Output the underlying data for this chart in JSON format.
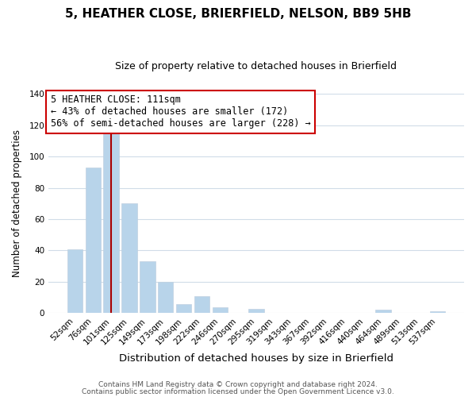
{
  "title": "5, HEATHER CLOSE, BRIERFIELD, NELSON, BB9 5HB",
  "subtitle": "Size of property relative to detached houses in Brierfield",
  "xlabel": "Distribution of detached houses by size in Brierfield",
  "ylabel": "Number of detached properties",
  "bar_labels": [
    "52sqm",
    "76sqm",
    "101sqm",
    "125sqm",
    "149sqm",
    "173sqm",
    "198sqm",
    "222sqm",
    "246sqm",
    "270sqm",
    "295sqm",
    "319sqm",
    "343sqm",
    "367sqm",
    "392sqm",
    "416sqm",
    "440sqm",
    "464sqm",
    "489sqm",
    "513sqm",
    "537sqm"
  ],
  "bar_values": [
    41,
    93,
    118,
    70,
    33,
    20,
    6,
    11,
    4,
    0,
    3,
    0,
    0,
    0,
    0,
    0,
    0,
    2,
    0,
    0,
    1
  ],
  "bar_color": "#b8d4ea",
  "red_line_bar_index": 2,
  "ylim": [
    0,
    140
  ],
  "yticks": [
    0,
    20,
    40,
    60,
    80,
    100,
    120,
    140
  ],
  "annotation_title": "5 HEATHER CLOSE: 111sqm",
  "annotation_line1": "← 43% of detached houses are smaller (172)",
  "annotation_line2": "56% of semi-detached houses are larger (228) →",
  "annotation_box_facecolor": "#ffffff",
  "annotation_box_edgecolor": "#cc0000",
  "footer1": "Contains HM Land Registry data © Crown copyright and database right 2024.",
  "footer2": "Contains public sector information licensed under the Open Government Licence v3.0.",
  "background_color": "#ffffff",
  "grid_color": "#d0dce8",
  "title_fontsize": 11,
  "subtitle_fontsize": 9,
  "xlabel_fontsize": 9.5,
  "ylabel_fontsize": 8.5,
  "tick_fontsize": 7.5,
  "annotation_fontsize": 8.5,
  "footer_fontsize": 6.5
}
